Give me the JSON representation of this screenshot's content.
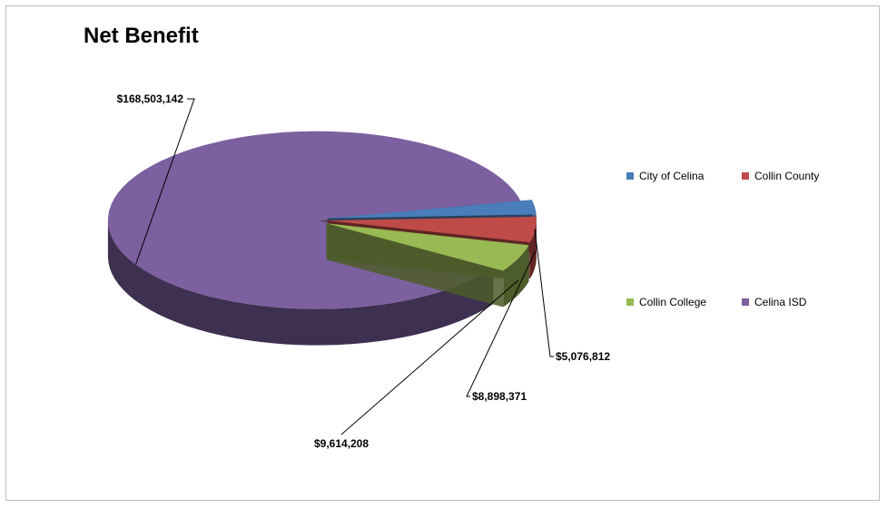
{
  "chart_data": {
    "type": "pie",
    "title": "Net Benefit",
    "categories": [
      "City of Celina",
      "Collin County",
      "Collin College",
      "Celina ISD"
    ],
    "values": [
      5076812,
      8898371,
      9614208,
      168503142
    ],
    "data_labels": [
      "$5,076,812",
      "$8,898,371",
      "$9,614,208",
      "$168,503,142"
    ],
    "colors": [
      "#4a7ebb",
      "#be4b48",
      "#98b954",
      "#7d60a0"
    ],
    "dark_colors": [
      "#283f5c",
      "#5f2523",
      "#4c5c2a",
      "#3e3050"
    ],
    "legend_position": "right",
    "style": "3d-exploded"
  }
}
